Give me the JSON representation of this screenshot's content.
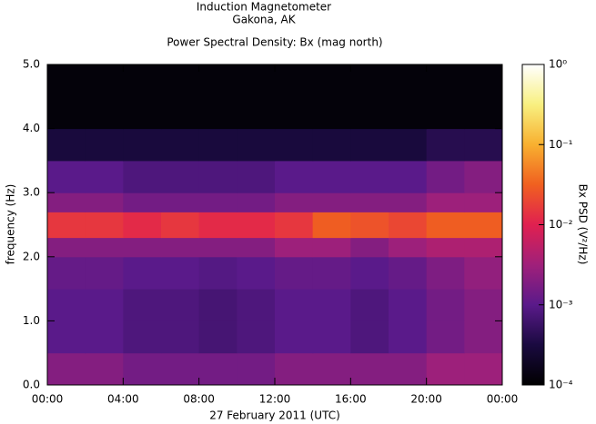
{
  "chart_data": {
    "type": "spectrogram",
    "title": "Induction Magnetometer",
    "subtitle": "Gakona, AK",
    "plot_title": "Power Spectral Density: Bx (mag north)",
    "xlabel": "27 February 2011 (UTC)",
    "ylabel": "frequency (Hz)",
    "colorbar_label": "Bx PSD (V²/Hz)",
    "xlim": [
      0,
      24
    ],
    "xticks": [
      {
        "value": 0,
        "label": "00:00"
      },
      {
        "value": 4,
        "label": "04:00"
      },
      {
        "value": 8,
        "label": "08:00"
      },
      {
        "value": 12,
        "label": "12:00"
      },
      {
        "value": 16,
        "label": "16:00"
      },
      {
        "value": 20,
        "label": "20:00"
      },
      {
        "value": 24,
        "label": "00:00"
      }
    ],
    "ylim": [
      0,
      5
    ],
    "yticks": [
      {
        "value": 0,
        "label": "0.0"
      },
      {
        "value": 1,
        "label": "1.0"
      },
      {
        "value": 2,
        "label": "2.0"
      },
      {
        "value": 3,
        "label": "3.0"
      },
      {
        "value": 4,
        "label": "4.0"
      },
      {
        "value": 5,
        "label": "5.0"
      }
    ],
    "zlim": [
      0.0001,
      1
    ],
    "zscale": "log",
    "zticks": [
      {
        "value": 0.0001,
        "label": "10⁻⁴"
      },
      {
        "value": 0.001,
        "label": "10⁻³"
      },
      {
        "value": 0.01,
        "label": "10⁻²"
      },
      {
        "value": 0.1,
        "label": "10⁻¹"
      },
      {
        "value": 1,
        "label": "10⁰"
      }
    ],
    "colormap": [
      "#000000",
      "#1a0a40",
      "#5a1a8a",
      "#a0207a",
      "#e02050",
      "#f06020",
      "#f8b030",
      "#f8f080",
      "#ffffff"
    ],
    "xbins": [
      0,
      2,
      4,
      6,
      8,
      10,
      12,
      14,
      16,
      18,
      20,
      22,
      24
    ],
    "ybins": [
      0,
      0.5,
      1,
      1.5,
      2,
      2.3,
      2.7,
      3,
      3.5,
      4,
      5
    ],
    "values": [
      [
        0.002,
        0.002,
        0.0015,
        0.0015,
        0.0015,
        0.0015,
        0.002,
        0.002,
        0.002,
        0.002,
        0.003,
        0.003
      ],
      [
        0.001,
        0.001,
        0.0008,
        0.0008,
        0.0007,
        0.0008,
        0.001,
        0.001,
        0.0008,
        0.001,
        0.0015,
        0.002
      ],
      [
        0.001,
        0.001,
        0.0008,
        0.0008,
        0.0007,
        0.0008,
        0.001,
        0.001,
        0.0008,
        0.001,
        0.0015,
        0.002
      ],
      [
        0.0012,
        0.0012,
        0.001,
        0.001,
        0.0009,
        0.001,
        0.0012,
        0.0012,
        0.001,
        0.0012,
        0.0018,
        0.0025
      ],
      [
        0.002,
        0.002,
        0.002,
        0.002,
        0.002,
        0.002,
        0.003,
        0.003,
        0.002,
        0.003,
        0.004,
        0.004
      ],
      [
        0.015,
        0.015,
        0.012,
        0.015,
        0.012,
        0.012,
        0.015,
        0.03,
        0.025,
        0.02,
        0.03,
        0.03
      ],
      [
        0.002,
        0.002,
        0.0015,
        0.0015,
        0.0015,
        0.0015,
        0.002,
        0.002,
        0.002,
        0.002,
        0.003,
        0.003
      ],
      [
        0.001,
        0.001,
        0.0008,
        0.0008,
        0.0008,
        0.0008,
        0.001,
        0.001,
        0.001,
        0.001,
        0.0015,
        0.002
      ],
      [
        0.0003,
        0.0003,
        0.0003,
        0.0003,
        0.0003,
        0.0003,
        0.0003,
        0.0003,
        0.0003,
        0.0003,
        0.0004,
        0.0004
      ],
      [
        0.00012,
        0.00012,
        0.00012,
        0.00012,
        0.00012,
        0.00012,
        0.00012,
        0.00012,
        0.00012,
        0.00012,
        0.00012,
        0.00012
      ]
    ]
  }
}
